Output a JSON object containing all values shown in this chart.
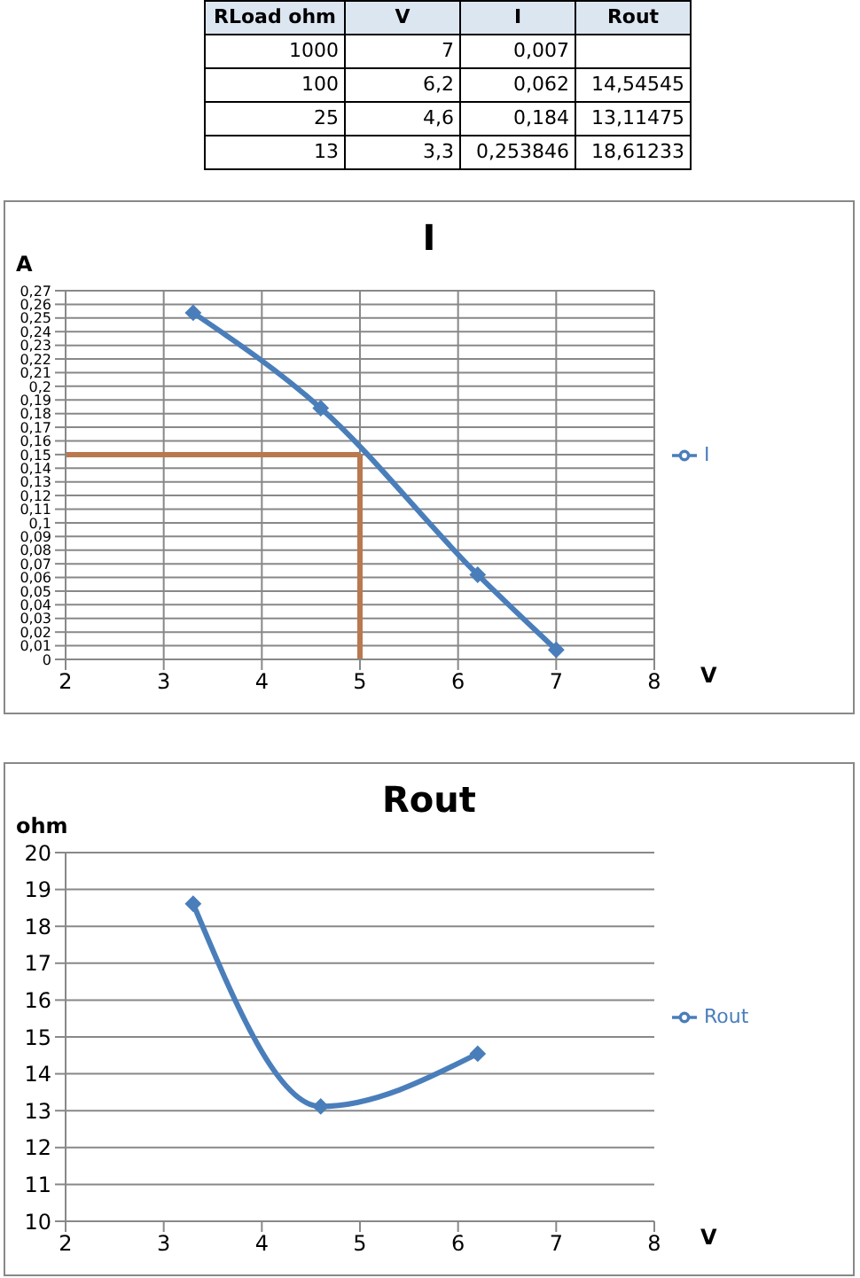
{
  "chart_data": [
    {
      "type": "other",
      "categories": [
        "RLoad ohm",
        "V",
        "I",
        "Rout"
      ],
      "cell_labels": [
        [
          "1000",
          "7",
          "0,007",
          null
        ],
        [
          "100",
          "6,2",
          "0,062",
          "14,54545"
        ],
        [
          "25",
          "4,6",
          "0,184",
          "13,11475"
        ],
        [
          "13",
          "3,3",
          "0,253846",
          "18,61233"
        ]
      ]
    },
    {
      "type": "line",
      "title": "I",
      "xlabel": "V",
      "ylabel": "A",
      "x": [
        7,
        6.2,
        4.6,
        3.3
      ],
      "series": [
        {
          "name": "I",
          "color": "#4a7ebb",
          "values": [
            0.007,
            0.062,
            0.184,
            0.253846
          ]
        }
      ],
      "xlim": [
        2,
        8
      ],
      "xticks": [
        2,
        3,
        4,
        5,
        6,
        7,
        8
      ],
      "ylim": [
        0,
        0.27
      ],
      "yticks": [
        0,
        {
          "value": 0.01,
          "label": "0,01"
        },
        {
          "value": 0.02,
          "label": "0,02"
        },
        {
          "value": 0.03,
          "label": "0,03"
        },
        {
          "value": 0.04,
          "label": "0,04"
        },
        {
          "value": 0.05,
          "label": "0,05"
        },
        {
          "value": 0.06,
          "label": "0,06"
        },
        {
          "value": 0.07,
          "label": "0,07"
        },
        {
          "value": 0.08,
          "label": "0,08"
        },
        {
          "value": 0.09,
          "label": "0,09"
        },
        {
          "value": 0.1,
          "label": "0,1"
        },
        {
          "value": 0.11,
          "label": "0,11"
        },
        {
          "value": 0.12,
          "label": "0,12"
        },
        {
          "value": 0.13,
          "label": "0,13"
        },
        {
          "value": 0.14,
          "label": "0,14"
        },
        {
          "value": 0.15,
          "label": "0,15"
        },
        {
          "value": 0.16,
          "label": "0,16"
        },
        {
          "value": 0.17,
          "label": "0,17"
        },
        {
          "value": 0.18,
          "label": "0,18"
        },
        {
          "value": 0.19,
          "label": "0,19"
        },
        {
          "value": 0.2,
          "label": "0,2"
        },
        {
          "value": 0.21,
          "label": "0,21"
        },
        {
          "value": 0.22,
          "label": "0,22"
        },
        {
          "value": 0.23,
          "label": "0,23"
        },
        {
          "value": 0.24,
          "label": "0,24"
        },
        {
          "value": 0.25,
          "label": "0,25"
        },
        {
          "value": 0.26,
          "label": "0,26"
        },
        {
          "value": 0.27,
          "label": "0,27"
        }
      ],
      "ref_lines": [
        {
          "axis": "y",
          "value": 0.15,
          "color": "#b9784e"
        },
        {
          "axis": "x",
          "value": 5,
          "color": "#b9784e"
        }
      ],
      "grid": true,
      "legend": "right",
      "marker": "diamond",
      "line_style": "solid"
    },
    {
      "type": "line",
      "title": "Rout",
      "xlabel": "V",
      "ylabel": "ohm",
      "x": [
        6.2,
        4.6,
        3.3
      ],
      "series": [
        {
          "name": "Rout",
          "color": "#4a7ebb",
          "values": [
            14.54545,
            13.11475,
            18.61233
          ]
        }
      ],
      "xlim": [
        2,
        8
      ],
      "xticks": [
        2,
        3,
        4,
        5,
        6,
        7,
        8
      ],
      "ylim": [
        10,
        20
      ],
      "yticks": [
        10,
        11,
        12,
        13,
        14,
        15,
        16,
        17,
        18,
        19,
        20
      ],
      "grid": "y",
      "legend": "right",
      "marker": "diamond",
      "line_style": "solid"
    }
  ]
}
